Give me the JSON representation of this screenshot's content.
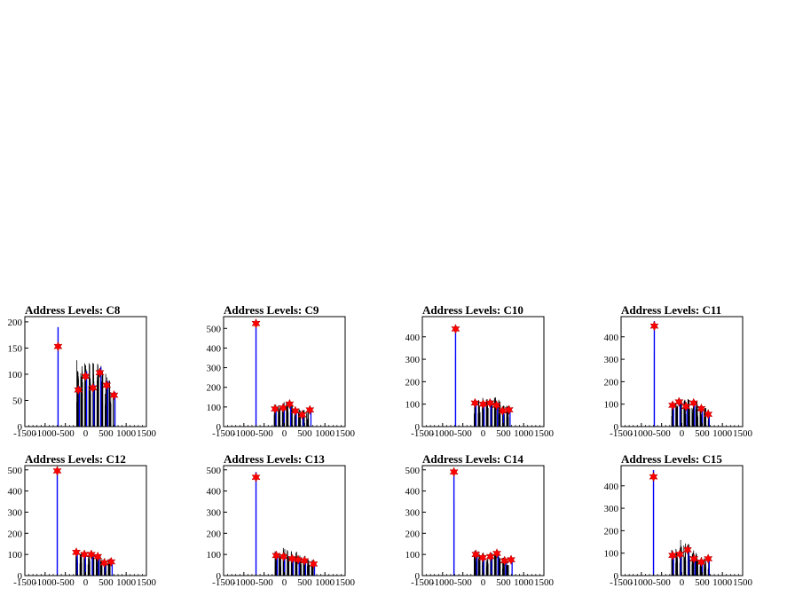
{
  "colors": {
    "hist": "#000000",
    "fit": "#0000ff",
    "peak": "#ff0000",
    "frame": "#000000"
  },
  "chart_data": [
    {
      "type": "histogram",
      "title": "Address Levels: C8",
      "xlim": [
        -1500,
        1500
      ],
      "ylim": [
        0,
        210
      ],
      "xticks": [
        -1500,
        -1000,
        -500,
        0,
        500,
        1000,
        1500
      ],
      "yticks": [
        50,
        100,
        150,
        200
      ],
      "peaks": [
        [
          -680,
          153
        ],
        [
          -180,
          70
        ],
        [
          0,
          96
        ],
        [
          180,
          74
        ],
        [
          350,
          103
        ],
        [
          520,
          79
        ],
        [
          700,
          60
        ]
      ],
      "envelope": [
        [
          -220,
          135
        ],
        [
          -150,
          110
        ],
        [
          -40,
          130
        ],
        [
          40,
          118
        ],
        [
          140,
          135
        ],
        [
          230,
          122
        ],
        [
          320,
          130
        ],
        [
          410,
          116
        ],
        [
          480,
          102
        ],
        [
          580,
          95
        ],
        [
          690,
          75
        ]
      ],
      "pulse_top": 190
    },
    {
      "type": "histogram",
      "title": "Address Levels: C9",
      "xlim": [
        -1500,
        1500
      ],
      "ylim": [
        0,
        560
      ],
      "xticks": [
        -1500,
        -1000,
        -500,
        0,
        500,
        1000,
        1500
      ],
      "yticks": [
        100,
        200,
        300,
        400,
        500
      ],
      "peaks": [
        [
          -700,
          525
        ],
        [
          -230,
          90
        ],
        [
          -30,
          95
        ],
        [
          130,
          115
        ],
        [
          270,
          80
        ],
        [
          440,
          60
        ],
        [
          630,
          85
        ]
      ],
      "envelope": [
        [
          -250,
          120
        ],
        [
          -150,
          110
        ],
        [
          -30,
          125
        ],
        [
          90,
          125
        ],
        [
          170,
          115
        ],
        [
          290,
          100
        ],
        [
          360,
          105
        ],
        [
          450,
          90
        ],
        [
          530,
          85
        ],
        [
          630,
          95
        ]
      ],
      "pulse_top": 520
    },
    {
      "type": "histogram",
      "title": "Address Levels: C10",
      "xlim": [
        -1500,
        1500
      ],
      "ylim": [
        0,
        490
      ],
      "xticks": [
        -1500,
        -1000,
        -500,
        0,
        500,
        1000,
        1500
      ],
      "yticks": [
        100,
        200,
        300,
        400
      ],
      "peaks": [
        [
          -680,
          435
        ],
        [
          -200,
          105
        ],
        [
          0,
          100
        ],
        [
          170,
          105
        ],
        [
          330,
          95
        ],
        [
          480,
          70
        ],
        [
          640,
          75
        ]
      ],
      "envelope": [
        [
          -220,
          125
        ],
        [
          -110,
          120
        ],
        [
          10,
          130
        ],
        [
          110,
          125
        ],
        [
          200,
          115
        ],
        [
          300,
          135
        ],
        [
          400,
          125
        ],
        [
          490,
          100
        ],
        [
          560,
          100
        ],
        [
          650,
          90
        ]
      ],
      "pulse_top": 450
    },
    {
      "type": "histogram",
      "title": "Address Levels: C11",
      "xlim": [
        -1500,
        1500
      ],
      "ylim": [
        0,
        490
      ],
      "xticks": [
        -1500,
        -1000,
        -500,
        0,
        500,
        1000,
        1500
      ],
      "yticks": [
        100,
        200,
        300,
        400
      ],
      "peaks": [
        [
          -680,
          448
        ],
        [
          -230,
          95
        ],
        [
          -70,
          110
        ],
        [
          100,
          90
        ],
        [
          290,
          105
        ],
        [
          480,
          80
        ],
        [
          650,
          55
        ]
      ],
      "envelope": [
        [
          -250,
          110
        ],
        [
          -160,
          115
        ],
        [
          -60,
          130
        ],
        [
          30,
          125
        ],
        [
          130,
          130
        ],
        [
          220,
          115
        ],
        [
          310,
          120
        ],
        [
          400,
          110
        ],
        [
          490,
          95
        ],
        [
          580,
          90
        ],
        [
          660,
          75
        ]
      ],
      "pulse_top": 470
    },
    {
      "type": "histogram",
      "title": "Address Levels: C12",
      "xlim": [
        -1500,
        1500
      ],
      "ylim": [
        0,
        520
      ],
      "xticks": [
        -1500,
        -1000,
        -500,
        0,
        500,
        1000,
        1500
      ],
      "yticks": [
        100,
        200,
        300,
        400,
        500
      ],
      "peaks": [
        [
          -700,
          495
        ],
        [
          -230,
          110
        ],
        [
          -30,
          100
        ],
        [
          140,
          100
        ],
        [
          300,
          90
        ],
        [
          460,
          60
        ],
        [
          630,
          65
        ]
      ],
      "envelope": [
        [
          -240,
          120
        ],
        [
          -140,
          110
        ],
        [
          -30,
          115
        ],
        [
          60,
          110
        ],
        [
          170,
          120
        ],
        [
          260,
          105
        ],
        [
          350,
          110
        ],
        [
          440,
          95
        ],
        [
          530,
          85
        ],
        [
          640,
          80
        ]
      ],
      "pulse_top": 510
    },
    {
      "type": "histogram",
      "title": "Address Levels: C13",
      "xlim": [
        -1500,
        1500
      ],
      "ylim": [
        0,
        520
      ],
      "xticks": [
        -1500,
        -1000,
        -500,
        0,
        500,
        1000,
        1500
      ],
      "yticks": [
        100,
        200,
        300,
        400,
        500
      ],
      "peaks": [
        [
          -700,
          465
        ],
        [
          -200,
          95
        ],
        [
          -20,
          90
        ],
        [
          190,
          80
        ],
        [
          340,
          75
        ],
        [
          500,
          70
        ],
        [
          720,
          55
        ]
      ],
      "envelope": [
        [
          -230,
          115
        ],
        [
          -120,
          105
        ],
        [
          0,
          140
        ],
        [
          80,
          120
        ],
        [
          190,
          130
        ],
        [
          270,
          110
        ],
        [
          340,
          120
        ],
        [
          430,
          90
        ],
        [
          520,
          95
        ],
        [
          600,
          85
        ],
        [
          720,
          70
        ]
      ],
      "pulse_top": 490
    },
    {
      "type": "histogram",
      "title": "Address Levels: C14",
      "xlim": [
        -1500,
        1500
      ],
      "ylim": [
        0,
        520
      ],
      "xticks": [
        -1500,
        -1000,
        -500,
        0,
        500,
        1000,
        1500
      ],
      "yticks": [
        100,
        200,
        300,
        400,
        500
      ],
      "peaks": [
        [
          -720,
          490
        ],
        [
          -180,
          100
        ],
        [
          -10,
          85
        ],
        [
          180,
          90
        ],
        [
          340,
          105
        ],
        [
          530,
          70
        ],
        [
          690,
          75
        ]
      ],
      "envelope": [
        [
          -220,
          120
        ],
        [
          -120,
          115
        ],
        [
          0,
          115
        ],
        [
          80,
          105
        ],
        [
          190,
          120
        ],
        [
          280,
          110
        ],
        [
          350,
          115
        ],
        [
          440,
          90
        ],
        [
          540,
          85
        ],
        [
          650,
          80
        ]
      ],
      "pulse_top": 505
    },
    {
      "type": "histogram",
      "title": "Address Levels: C15",
      "xlim": [
        -1500,
        1500
      ],
      "ylim": [
        0,
        490
      ],
      "xticks": [
        -1500,
        -1000,
        -500,
        0,
        500,
        1000,
        1500
      ],
      "yticks": [
        100,
        200,
        300,
        400
      ],
      "peaks": [
        [
          -700,
          440
        ],
        [
          -230,
          90
        ],
        [
          -50,
          95
        ],
        [
          140,
          115
        ],
        [
          300,
          75
        ],
        [
          480,
          60
        ],
        [
          650,
          75
        ]
      ],
      "envelope": [
        [
          -250,
          130
        ],
        [
          -150,
          120
        ],
        [
          -30,
          165
        ],
        [
          50,
          140
        ],
        [
          150,
          155
        ],
        [
          250,
          110
        ],
        [
          330,
          120
        ],
        [
          420,
          95
        ],
        [
          500,
          90
        ],
        [
          580,
          80
        ],
        [
          660,
          85
        ]
      ],
      "pulse_top": 470
    }
  ]
}
